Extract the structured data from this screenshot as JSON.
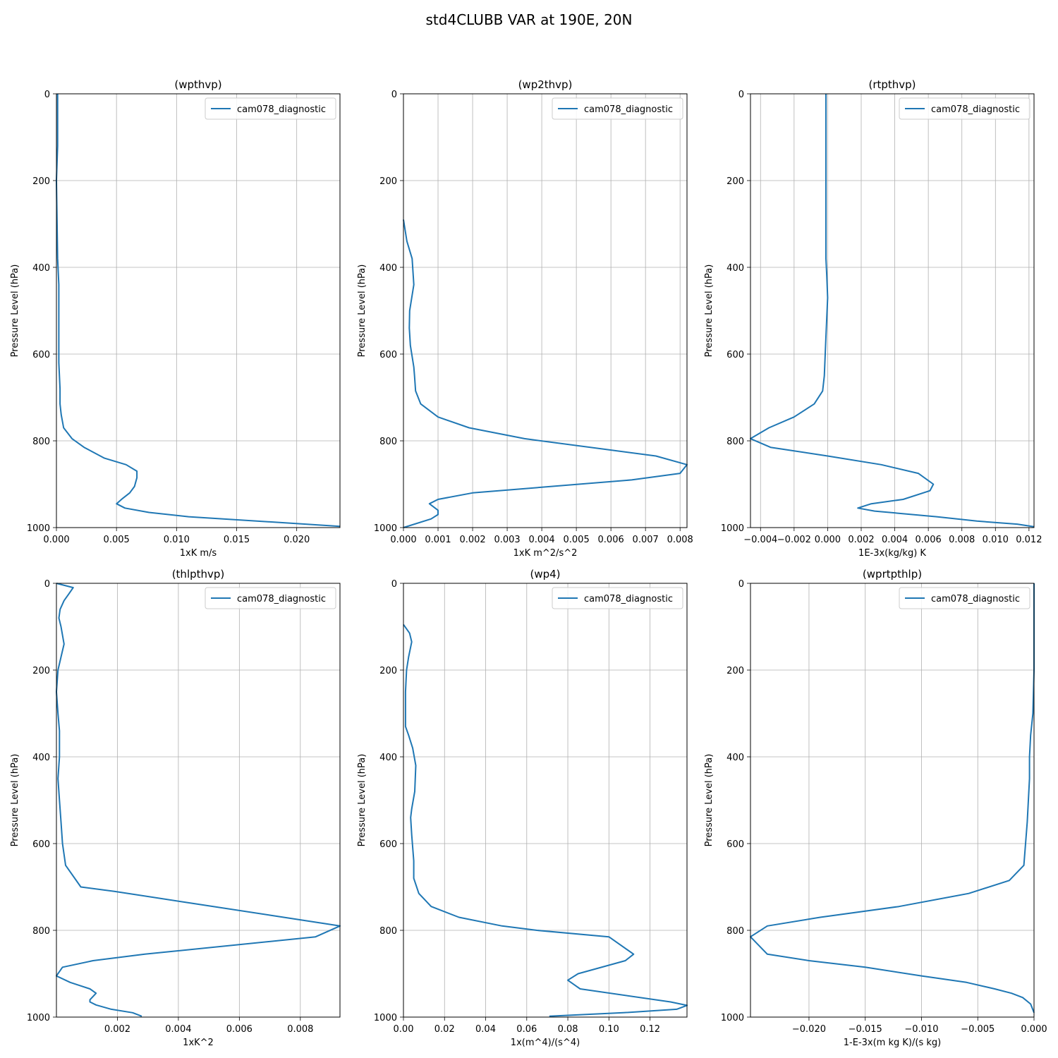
{
  "figure": {
    "title": "std4CLUBB VAR at 190E, 20N"
  },
  "chart_data": [
    {
      "type": "line",
      "title": "(wpthvp)",
      "xlabel": "1xK m/s",
      "ylabel": "Pressure Level (hPa)",
      "xlim": [
        0.0,
        0.0236
      ],
      "ylim": [
        0,
        1000
      ],
      "y_inverted": true,
      "grid": true,
      "legend_position": "upper right",
      "xticks": [
        0.0,
        0.005,
        0.01,
        0.015,
        0.02
      ],
      "xtick_labels": [
        "0.000",
        "0.005",
        "0.010",
        "0.015",
        "0.020"
      ],
      "yticks": [
        0,
        200,
        400,
        600,
        800,
        1000
      ],
      "ytick_labels": [
        "0",
        "200",
        "400",
        "600",
        "800",
        "1000"
      ],
      "series": [
        {
          "name": "cam078_diagnostic",
          "color": "#1f77b4",
          "x": [
            0.0001,
            0.0001,
            0.0,
            0.0001,
            0.0002,
            0.0002,
            0.0002,
            0.0002,
            0.0003,
            0.0003,
            0.0004,
            0.0006,
            0.0013,
            0.0023,
            0.004,
            0.0058,
            0.0067,
            0.0067,
            0.0065,
            0.0061,
            0.0055,
            0.005,
            0.0057,
            0.0077,
            0.011,
            0.0236
          ],
          "y": [
            0,
            120,
            200,
            380,
            440,
            500,
            560,
            620,
            680,
            715,
            740,
            770,
            795,
            815,
            840,
            855,
            870,
            885,
            905,
            920,
            933,
            945,
            955,
            965,
            975,
            997
          ]
        }
      ]
    },
    {
      "type": "line",
      "title": "(wp2thvp)",
      "xlabel": "1xK m^2/s^2",
      "ylabel": "Pressure Level (hPa)",
      "xlim": [
        0.0,
        0.0082
      ],
      "ylim": [
        0,
        1000
      ],
      "y_inverted": true,
      "grid": true,
      "legend_position": "upper right",
      "xticks": [
        0.0,
        0.001,
        0.002,
        0.003,
        0.004,
        0.005,
        0.006,
        0.007,
        0.008
      ],
      "xtick_labels": [
        "0.000",
        "0.001",
        "0.002",
        "0.003",
        "0.004",
        "0.005",
        "0.006",
        "0.007",
        "0.008"
      ],
      "yticks": [
        0,
        200,
        400,
        600,
        800,
        1000
      ],
      "ytick_labels": [
        "0",
        "200",
        "400",
        "600",
        "800",
        "1000"
      ],
      "series": [
        {
          "name": "cam078_diagnostic",
          "color": "#1f77b4",
          "x": [
            0.0,
            0.0001,
            0.00025,
            0.0003,
            0.00018,
            0.00017,
            0.0002,
            0.0003,
            0.00032,
            0.00035,
            0.0005,
            0.001,
            0.0019,
            0.0035,
            0.0073,
            0.0082,
            0.008,
            0.0066,
            0.002,
            0.001,
            0.00075,
            0.001,
            0.001,
            0.0008,
            0.0
          ],
          "y": [
            290,
            340,
            380,
            440,
            500,
            540,
            580,
            630,
            650,
            685,
            715,
            745,
            770,
            795,
            835,
            855,
            875,
            890,
            920,
            935,
            945,
            960,
            970,
            980,
            1000
          ]
        }
      ]
    },
    {
      "type": "line",
      "title": "(rtpthvp)",
      "xlabel": "1E-3x(kg/kg) K",
      "ylabel": "Pressure Level (hPa)",
      "xlim": [
        -0.0046,
        0.0123
      ],
      "ylim": [
        0,
        1000
      ],
      "y_inverted": true,
      "grid": true,
      "legend_position": "upper right",
      "xticks": [
        -0.004,
        -0.002,
        0.0,
        0.002,
        0.004,
        0.006,
        0.008,
        0.01,
        0.012
      ],
      "xtick_labels": [
        "−0.004",
        "−0.002",
        "0.000",
        "0.002",
        "0.004",
        "0.006",
        "0.008",
        "0.010",
        "0.012"
      ],
      "yticks": [
        0,
        200,
        400,
        600,
        800,
        1000
      ],
      "ytick_labels": [
        "0",
        "200",
        "400",
        "600",
        "800",
        "1000"
      ],
      "series": [
        {
          "name": "cam078_diagnostic",
          "color": "#1f77b4",
          "x": [
            -0.0001,
            -0.0001,
            -0.0001,
            -0.0001,
            -0.0001,
            -5e-05,
            0.0,
            -0.0001,
            -0.0002,
            -0.0003,
            -0.0008,
            -0.002,
            -0.0035,
            -0.0046,
            -0.0034,
            0.0,
            0.0032,
            0.0054,
            0.0063,
            0.0061,
            0.0045,
            0.0026,
            0.0018,
            0.0028,
            0.0065,
            0.0089,
            0.0113,
            0.0123
          ],
          "y": [
            0,
            100,
            200,
            300,
            380,
            420,
            470,
            560,
            650,
            685,
            715,
            745,
            770,
            795,
            815,
            835,
            855,
            875,
            900,
            915,
            935,
            945,
            955,
            962,
            975,
            985,
            992,
            998
          ]
        }
      ]
    },
    {
      "type": "line",
      "title": "(thlpthvp)",
      "xlabel": "1xK^2",
      "ylabel": "Pressure Level (hPa)",
      "xlim": [
        0.0,
        0.0093
      ],
      "ylim": [
        0,
        1000
      ],
      "y_inverted": true,
      "grid": true,
      "legend_position": "upper right",
      "xticks": [
        0.002,
        0.004,
        0.006,
        0.008
      ],
      "xtick_labels": [
        "0.002",
        "0.004",
        "0.006",
        "0.008"
      ],
      "yticks": [
        0,
        200,
        400,
        600,
        800,
        1000
      ],
      "ytick_labels": [
        "0",
        "200",
        "400",
        "600",
        "800",
        "1000"
      ],
      "series": [
        {
          "name": "cam078_diagnostic",
          "color": "#1f77b4",
          "x": [
            0.0,
            0.00055,
            0.0004,
            0.00025,
            0.00012,
            8e-05,
            0.00015,
            0.00025,
            0.00015,
            5e-05,
            0.0,
            5e-05,
            0.0001,
            0.0001,
            0.0001,
            5e-05,
            0.0001,
            0.00015,
            0.0002,
            0.0003,
            0.0008,
            0.0019,
            0.0042,
            0.007,
            0.0093,
            0.0085,
            0.0029,
            0.0012,
            0.0002,
            0.0,
            0.00045,
            0.0011,
            0.0013,
            0.0011,
            0.0011,
            0.0013,
            0.0018,
            0.0025,
            0.0028
          ],
          "y": [
            0,
            10,
            25,
            40,
            60,
            80,
            100,
            140,
            170,
            200,
            250,
            300,
            340,
            370,
            400,
            450,
            500,
            550,
            600,
            650,
            700,
            710,
            735,
            765,
            790,
            815,
            855,
            870,
            885,
            905,
            920,
            935,
            945,
            960,
            965,
            972,
            982,
            990,
            998
          ]
        }
      ]
    },
    {
      "type": "line",
      "title": "(wp4)",
      "xlabel": "1x(m^4)/(s^4)",
      "ylabel": "Pressure Level (hPa)",
      "xlim": [
        0.0,
        0.138
      ],
      "ylim": [
        0,
        1000
      ],
      "y_inverted": true,
      "grid": true,
      "legend_position": "upper right",
      "xticks": [
        0.0,
        0.02,
        0.04,
        0.06,
        0.08,
        0.1,
        0.12
      ],
      "xtick_labels": [
        "0.00",
        "0.02",
        "0.04",
        "0.06",
        "0.08",
        "0.10",
        "0.12"
      ],
      "yticks": [
        0,
        200,
        400,
        600,
        800,
        1000
      ],
      "ytick_labels": [
        "0",
        "200",
        "400",
        "600",
        "800",
        "1000"
      ],
      "series": [
        {
          "name": "cam078_diagnostic",
          "color": "#1f77b4",
          "x": [
            0.0,
            0.003,
            0.004,
            0.0025,
            0.0015,
            0.001,
            0.001,
            0.001,
            0.0025,
            0.0045,
            0.006,
            0.0055,
            0.004,
            0.0035,
            0.004,
            0.005,
            0.005,
            0.0075,
            0.0135,
            0.027,
            0.048,
            0.065,
            0.1,
            0.112,
            0.108,
            0.085,
            0.08,
            0.086,
            0.13,
            0.138,
            0.133,
            0.107,
            0.071
          ],
          "y": [
            95,
            115,
            135,
            170,
            200,
            250,
            300,
            330,
            350,
            380,
            420,
            480,
            520,
            540,
            580,
            640,
            680,
            715,
            745,
            770,
            790,
            800,
            815,
            855,
            870,
            900,
            915,
            935,
            965,
            973,
            982,
            990,
            998
          ]
        }
      ]
    },
    {
      "type": "line",
      "title": "(wprtpthlp)",
      "xlabel": "1-E-3x(m kg K)/(s kg)",
      "ylabel": "Pressure Level (hPa)",
      "xlim": [
        -0.0252,
        0.0
      ],
      "ylim": [
        0,
        1000
      ],
      "y_inverted": true,
      "grid": true,
      "legend_position": "upper right",
      "xticks": [
        -0.02,
        -0.015,
        -0.01,
        -0.005,
        0.0
      ],
      "xtick_labels": [
        "−0.020",
        "−0.015",
        "−0.010",
        "−0.005",
        "0.000"
      ],
      "yticks": [
        0,
        200,
        400,
        600,
        800,
        1000
      ],
      "ytick_labels": [
        "0",
        "200",
        "400",
        "600",
        "800",
        "1000"
      ],
      "series": [
        {
          "name": "cam078_diagnostic",
          "color": "#1f77b4",
          "x": [
            0.0,
            0.0,
            -0.0001,
            -0.0003,
            -0.0004,
            -0.0004,
            -0.0005,
            -0.0006,
            -0.0009,
            -0.0022,
            -0.0058,
            -0.012,
            -0.019,
            -0.0237,
            -0.0252,
            -0.0237,
            -0.02,
            -0.015,
            -0.01,
            -0.006,
            -0.0035,
            -0.002,
            -0.001,
            -0.0003,
            0.0
          ],
          "y": [
            0,
            200,
            300,
            350,
            400,
            450,
            500,
            550,
            650,
            685,
            715,
            745,
            770,
            790,
            815,
            855,
            870,
            885,
            905,
            920,
            935,
            945,
            955,
            970,
            990
          ]
        }
      ]
    }
  ]
}
